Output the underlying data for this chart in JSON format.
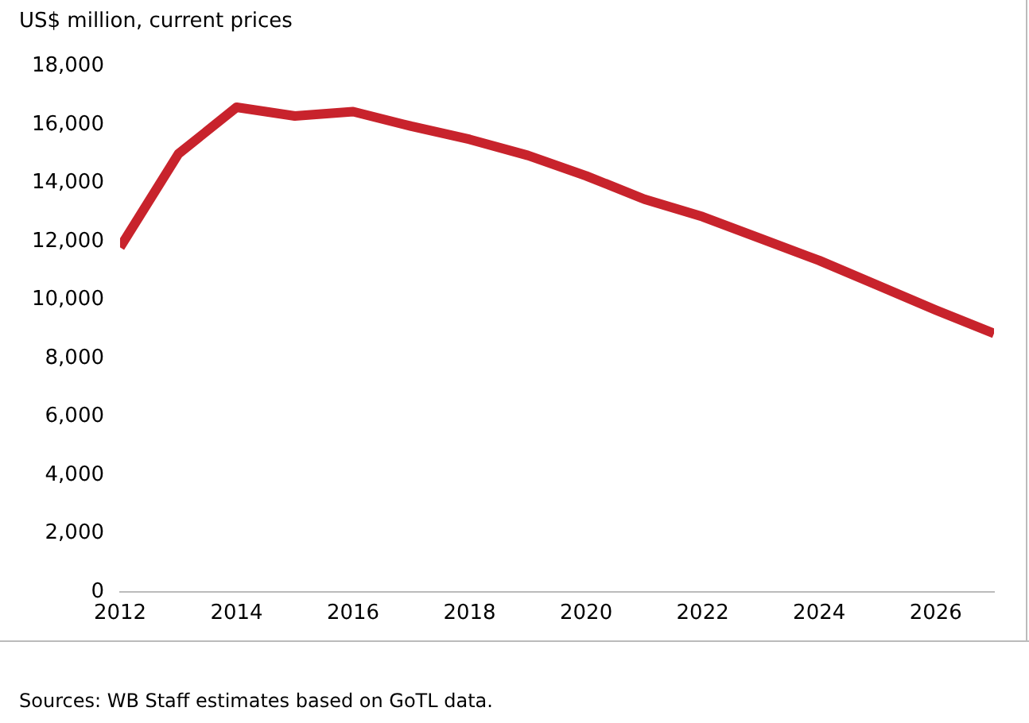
{
  "chart_data": {
    "type": "line",
    "ylabel": "US$ million, current prices",
    "x": [
      2012,
      2013,
      2014,
      2015,
      2016,
      2017,
      2018,
      2019,
      2020,
      2021,
      2022,
      2023,
      2024,
      2025,
      2026,
      2027
    ],
    "series": [
      {
        "color": "#c8232c",
        "values": [
          11800,
          15000,
          16600,
          16300,
          16450,
          15950,
          15500,
          14950,
          14250,
          13450,
          12850,
          12100,
          11350,
          10500,
          9650,
          8850
        ]
      }
    ],
    "xlim": [
      2012,
      2027
    ],
    "xticks": [
      2012,
      2014,
      2016,
      2018,
      2020,
      2022,
      2024,
      2026
    ],
    "ylim": [
      0,
      18000
    ],
    "yticks": [
      0,
      {
        "value": 2000,
        "label": "2,000"
      },
      {
        "value": 4000,
        "label": "4,000"
      },
      {
        "value": 6000,
        "label": "6,000"
      },
      {
        "value": 8000,
        "label": "8,000"
      },
      {
        "value": 10000,
        "label": "10,000"
      },
      {
        "value": 12000,
        "label": "12,000"
      },
      {
        "value": 14000,
        "label": "14,000"
      },
      {
        "value": 16000,
        "label": "16,000"
      },
      {
        "value": 18000,
        "label": "18,000"
      }
    ],
    "grid": false,
    "legend": false,
    "marker": "none",
    "line_style": "solid",
    "annotations": [
      "Sources: WB Staff estimates based on GoTL data."
    ]
  }
}
